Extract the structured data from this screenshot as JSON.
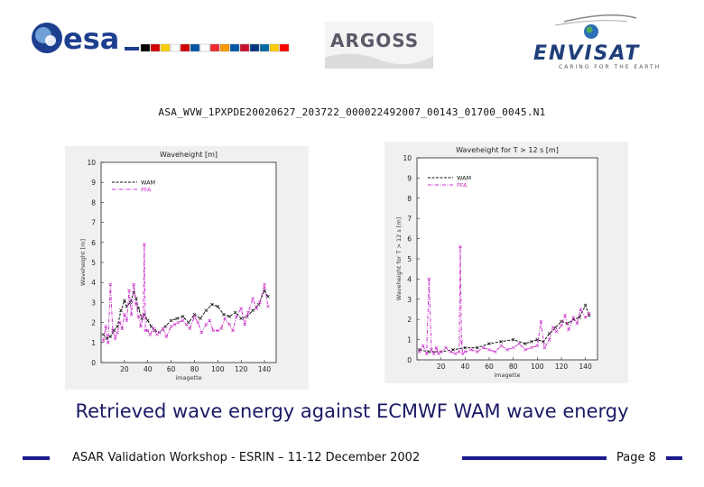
{
  "header": {
    "esa_logo_text": "esa",
    "argoss_logo_text": "ARGOSS",
    "envisat_logo_text": "ENVISAT",
    "envisat_tagline": "CARING FOR THE EARTH",
    "esa_flag_colors": [
      "#000000",
      "#d00000",
      "#ffce00",
      "#ffffff",
      "#d00000",
      "#0055a4",
      "#ffffff",
      "#ef2b2d",
      "#ff9900",
      "#0055a4",
      "#c8102e",
      "#003580",
      "#006aa7",
      "#fecc00",
      "#ff0000"
    ]
  },
  "filename": "ASA_WVW_1PXPDE20020627_203722_000022492007_00143_01700_0045.N1",
  "caption": "Retrieved wave energy against ECMWF WAM wave energy",
  "footer": {
    "text": "ASAR Validation Workshop - ESRIN – 11-12 December 2002",
    "page": "Page 8"
  },
  "colors": {
    "wam": "#111111",
    "pfa": "#cc33cc",
    "accent": "#1a1a8c"
  },
  "chart_data": [
    {
      "type": "line",
      "title": "Waveheight [m]",
      "xlabel": "imagette",
      "ylabel": "Waveheight [m]",
      "xlim": [
        0,
        150
      ],
      "ylim": [
        0,
        10
      ],
      "xticks": [
        20,
        40,
        60,
        80,
        100,
        120,
        140
      ],
      "yticks": [
        0,
        1,
        2,
        3,
        4,
        5,
        6,
        7,
        8,
        9,
        10
      ],
      "legend_position": "top-left",
      "series": [
        {
          "name": "WAM",
          "style": "dashed",
          "color": "#111111",
          "x": [
            2,
            5,
            8,
            11,
            14,
            17,
            20,
            22,
            25,
            28,
            30,
            32,
            35,
            37,
            40,
            43,
            46,
            50,
            55,
            60,
            65,
            70,
            75,
            80,
            85,
            90,
            95,
            100,
            105,
            110,
            115,
            120,
            125,
            130,
            135,
            140,
            143
          ],
          "y": [
            1.4,
            1.2,
            1.3,
            1.6,
            1.8,
            2.6,
            3.1,
            2.8,
            3.0,
            3.5,
            3.2,
            2.7,
            2.2,
            2.4,
            2.1,
            1.8,
            1.6,
            1.5,
            1.8,
            2.1,
            2.2,
            2.3,
            2.0,
            2.4,
            2.2,
            2.6,
            2.9,
            2.8,
            2.4,
            2.3,
            2.5,
            2.2,
            2.3,
            2.6,
            2.9,
            3.6,
            3.3
          ]
        },
        {
          "name": "PFA",
          "style": "dash-dot",
          "color": "#cc33cc",
          "x": [
            2,
            4,
            6,
            8,
            10,
            12,
            14,
            16,
            18,
            20,
            22,
            24,
            26,
            28,
            30,
            32,
            34,
            36,
            37,
            38,
            40,
            42,
            45,
            48,
            50,
            53,
            56,
            60,
            63,
            66,
            70,
            73,
            76,
            80,
            83,
            86,
            90,
            93,
            96,
            100,
            103,
            106,
            110,
            113,
            116,
            120,
            123,
            126,
            130,
            133,
            136,
            140,
            143
          ],
          "y": [
            1.1,
            1.8,
            1.0,
            3.9,
            1.6,
            1.2,
            1.5,
            2.0,
            1.7,
            2.4,
            2.1,
            3.6,
            2.4,
            3.9,
            2.9,
            2.3,
            1.8,
            2.3,
            5.9,
            1.6,
            1.6,
            1.4,
            1.7,
            1.4,
            1.5,
            1.7,
            1.3,
            1.8,
            1.9,
            2.0,
            2.1,
            1.9,
            1.7,
            2.3,
            2.0,
            1.5,
            1.9,
            2.1,
            1.6,
            1.6,
            1.7,
            2.2,
            1.9,
            1.6,
            2.3,
            2.7,
            1.9,
            2.5,
            3.2,
            2.7,
            3.0,
            3.9,
            2.8
          ]
        }
      ]
    },
    {
      "type": "line",
      "title": "Waveheight for T > 12 s [m]",
      "xlabel": "imagette",
      "ylabel": "Waveheight for T > 12 s [m]",
      "xlim": [
        0,
        150
      ],
      "ylim": [
        0,
        10
      ],
      "xticks": [
        20,
        40,
        60,
        80,
        100,
        120,
        140
      ],
      "yticks": [
        0,
        1,
        2,
        3,
        4,
        5,
        6,
        7,
        8,
        9,
        10
      ],
      "legend_position": "top-left",
      "series": [
        {
          "name": "WAM",
          "style": "dashed",
          "color": "#111111",
          "x": [
            2,
            10,
            20,
            30,
            40,
            50,
            60,
            70,
            80,
            90,
            95,
            100,
            105,
            110,
            115,
            120,
            125,
            130,
            135,
            140,
            143
          ],
          "y": [
            0.5,
            0.4,
            0.4,
            0.5,
            0.6,
            0.6,
            0.8,
            0.9,
            1.0,
            0.8,
            0.9,
            1.0,
            0.9,
            1.3,
            1.6,
            1.9,
            1.8,
            2.0,
            2.1,
            2.7,
            2.2
          ]
        },
        {
          "name": "PFA",
          "style": "dash-dot",
          "color": "#cc33cc",
          "x": [
            2,
            5,
            8,
            10,
            12,
            14,
            16,
            18,
            20,
            24,
            28,
            32,
            35,
            36,
            37,
            38,
            40,
            45,
            50,
            55,
            60,
            65,
            70,
            75,
            80,
            85,
            90,
            95,
            100,
            103,
            106,
            110,
            113,
            116,
            120,
            123,
            126,
            130,
            133,
            136,
            140,
            143
          ],
          "y": [
            0.4,
            0.7,
            0.3,
            4.0,
            0.5,
            0.3,
            0.6,
            0.3,
            0.4,
            0.6,
            0.4,
            0.3,
            0.4,
            5.6,
            0.9,
            0.3,
            0.4,
            0.5,
            0.4,
            0.6,
            0.5,
            0.4,
            0.7,
            0.5,
            0.6,
            0.8,
            0.5,
            0.6,
            0.7,
            1.9,
            0.6,
            1.0,
            1.6,
            1.4,
            1.7,
            2.2,
            1.5,
            2.1,
            1.8,
            2.5,
            2.1,
            2.3
          ]
        }
      ]
    }
  ]
}
